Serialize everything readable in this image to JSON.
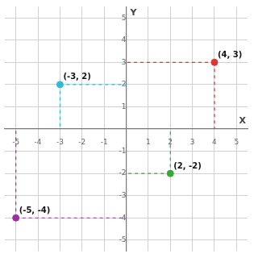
{
  "chart_data": {
    "type": "scatter",
    "xlabel": "X",
    "ylabel": "Y",
    "x": [
      4,
      -3,
      2,
      -5
    ],
    "values": [
      3,
      2,
      -2,
      -4
    ],
    "colors": [
      "#e03535",
      "#30bcd4",
      "#38a838",
      "#9b30a0"
    ],
    "data_labels": true,
    "value_labels": [
      "(4, 3)",
      "(-3, 2)",
      "(2, -2)",
      "(-5, -4)"
    ],
    "xlim": [
      -5.5,
      5.5
    ],
    "ylim": [
      -5.5,
      5.5
    ],
    "xticks": [
      -5,
      -4,
      -3,
      -2,
      -1,
      1,
      2,
      3,
      4,
      5
    ],
    "yticks": [
      -5,
      -4,
      -3,
      -2,
      -1,
      1,
      2,
      3,
      4,
      5
    ],
    "grid": true
  }
}
